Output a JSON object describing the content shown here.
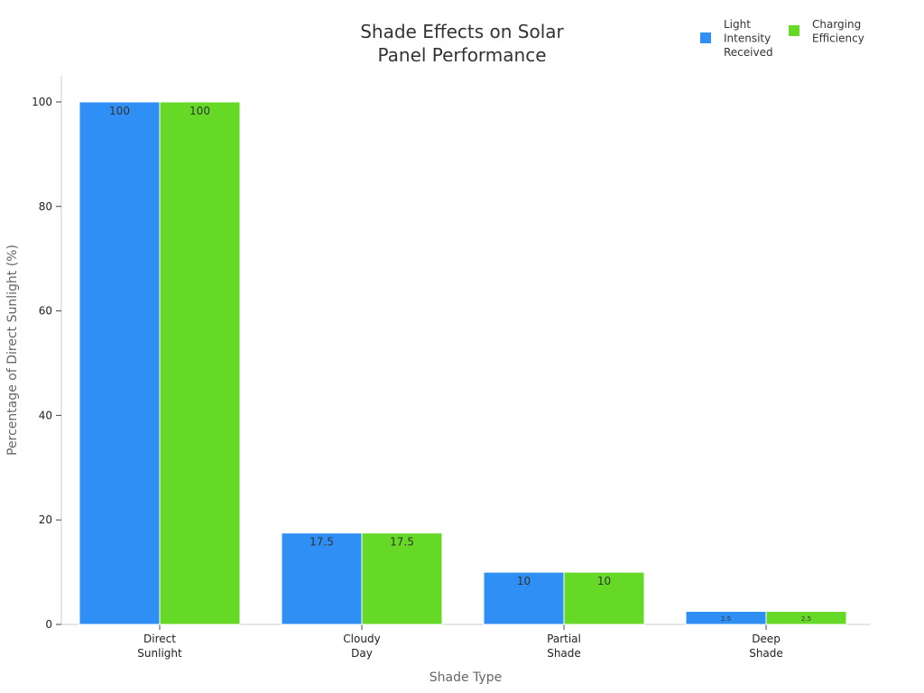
{
  "chart_data": {
    "type": "bar",
    "title": [
      "Shade Effects on Solar",
      "Panel Performance"
    ],
    "xlabel": "Shade Type",
    "ylabel": "Percentage of Direct Sunlight (%)",
    "ylim": [
      0,
      105
    ],
    "yticks": [
      0,
      20,
      40,
      60,
      80,
      100
    ],
    "categories": [
      [
        "Direct",
        "Sunlight"
      ],
      [
        "Cloudy",
        "Day"
      ],
      [
        "Partial",
        "Shade"
      ],
      [
        "Deep",
        "Shade"
      ]
    ],
    "series": [
      {
        "name": [
          "Light",
          "Intensity",
          "Received"
        ],
        "color": "#2f8ff5",
        "values": [
          100,
          17.5,
          10,
          2.5
        ],
        "labels": [
          "100",
          "17.5",
          "10",
          "2.5"
        ]
      },
      {
        "name": [
          "Charging",
          "Efficiency"
        ],
        "color": "#66d927",
        "values": [
          100,
          17.5,
          10,
          2.5
        ],
        "labels": [
          "100",
          "17.5",
          "10",
          "2.5"
        ]
      }
    ],
    "legend_position": "top-right",
    "grid": false
  }
}
